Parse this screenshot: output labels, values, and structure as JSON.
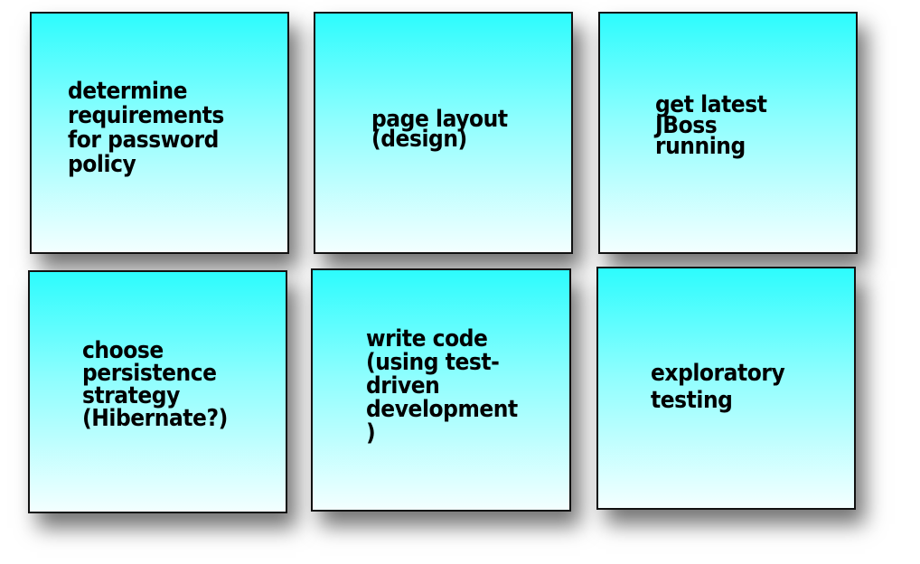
{
  "cards": [
    {
      "text": "determine\nrequirements\nfor password\npolicy"
    },
    {
      "text": "page layout\n(design)"
    },
    {
      "text": "get latest\nJBoss\nrunning"
    },
    {
      "text": "choose\npersistence\nstrategy\n(Hibernate?)"
    },
    {
      "text": "write code\n(using test-\ndriven\ndevelopment\n)"
    },
    {
      "text": "exploratory\ntesting"
    }
  ],
  "colors": {
    "card_top": "#2dfcfd",
    "card_bottom": "#f3ffff",
    "border": "#111111",
    "text": "#000000"
  }
}
